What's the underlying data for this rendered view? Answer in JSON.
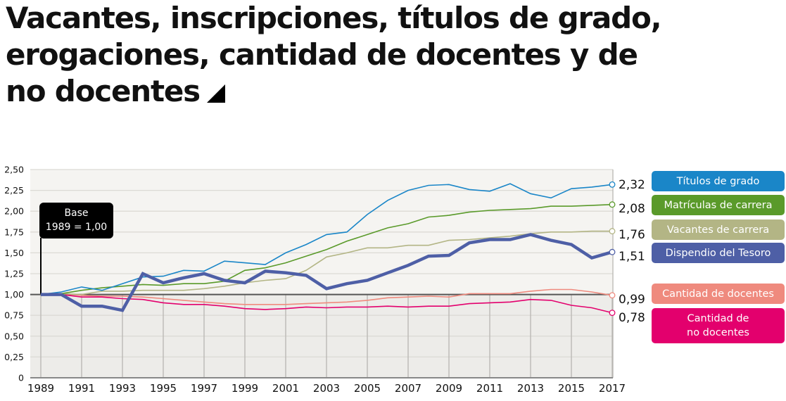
{
  "title": "Vacantes, inscripciones, títulos de grado, erogaciones, cantidad de docentes y de no docentes",
  "title_lines": [
    "Vacantes, inscripciones, títulos de grado,",
    "erogaciones, cantidad de docentes y de",
    "no docentes"
  ],
  "title_icon": "triangle-corner-icon",
  "annotation": {
    "line1": "Base",
    "line2": "1989 = 1,00"
  },
  "chart_data": {
    "type": "line",
    "title": "Vacantes, inscripciones, títulos de grado, erogaciones, cantidad de docentes y de no docentes",
    "xlabel": "",
    "ylabel": "",
    "ylim": [
      0,
      2.5
    ],
    "xlim": [
      1989,
      2017
    ],
    "grid": true,
    "legend_position": "right",
    "baseline": 1.0,
    "y_ticks": [
      "0",
      "0,25",
      "0,50",
      "0,75",
      "1,00",
      "1,25",
      "1,50",
      "1,75",
      "2,00",
      "2,25",
      "2,50"
    ],
    "y_tick_values": [
      0,
      0.25,
      0.5,
      0.75,
      1.0,
      1.25,
      1.5,
      1.75,
      2.0,
      2.25,
      2.5
    ],
    "x_ticks": [
      "1989",
      "1991",
      "1993",
      "1995",
      "1997",
      "1999",
      "2001",
      "2003",
      "2005",
      "2007",
      "2009",
      "2011",
      "2013",
      "2015",
      "2017"
    ],
    "x": [
      1989,
      1990,
      1991,
      1992,
      1993,
      1994,
      1995,
      1996,
      1997,
      1998,
      1999,
      2000,
      2001,
      2002,
      2003,
      2004,
      2005,
      2006,
      2007,
      2008,
      2009,
      2010,
      2011,
      2012,
      2013,
      2014,
      2015,
      2016,
      2017
    ],
    "series": [
      {
        "name": "Títulos de grado",
        "color": "#1a86c8",
        "width": 1.6,
        "end_label": "2,32",
        "values": [
          1.0,
          1.03,
          1.09,
          1.05,
          1.13,
          1.21,
          1.22,
          1.29,
          1.28,
          1.4,
          1.38,
          1.36,
          1.5,
          1.6,
          1.72,
          1.75,
          1.96,
          2.13,
          2.25,
          2.31,
          2.32,
          2.26,
          2.24,
          2.33,
          2.21,
          2.16,
          2.27,
          2.29,
          2.32
        ]
      },
      {
        "name": "Matrículas de carrera",
        "color": "#5a9a2a",
        "width": 1.6,
        "end_label": "2,08",
        "values": [
          1.0,
          1.01,
          1.05,
          1.08,
          1.1,
          1.12,
          1.11,
          1.13,
          1.13,
          1.16,
          1.29,
          1.32,
          1.38,
          1.46,
          1.54,
          1.64,
          1.72,
          1.8,
          1.85,
          1.93,
          1.95,
          1.99,
          2.01,
          2.02,
          2.03,
          2.06,
          2.06,
          2.07,
          2.08
        ]
      },
      {
        "name": "Vacantes de carrera",
        "color": "#b3b585",
        "width": 1.6,
        "end_label": "1,76",
        "values": [
          1.0,
          1.01,
          1.0,
          1.04,
          1.04,
          1.05,
          1.05,
          1.05,
          1.07,
          1.1,
          1.14,
          1.17,
          1.19,
          1.29,
          1.45,
          1.5,
          1.56,
          1.56,
          1.59,
          1.59,
          1.65,
          1.66,
          1.68,
          1.7,
          1.73,
          1.75,
          1.75,
          1.76,
          1.76
        ]
      },
      {
        "name": "Dispendio del Tesoro",
        "color": "#4e5fa6",
        "width": 4.5,
        "end_label": "1,51",
        "values": [
          1.0,
          1.0,
          0.86,
          0.86,
          0.81,
          1.25,
          1.14,
          1.2,
          1.25,
          1.17,
          1.14,
          1.28,
          1.26,
          1.23,
          1.07,
          1.13,
          1.17,
          1.26,
          1.35,
          1.46,
          1.47,
          1.62,
          1.66,
          1.66,
          1.72,
          1.65,
          1.6,
          1.44,
          1.51
        ]
      },
      {
        "name": "Cantidad de docentes",
        "color": "#ef8a7e",
        "width": 1.6,
        "end_label": "0,99",
        "values": [
          1.0,
          1.01,
          0.99,
          0.98,
          0.98,
          0.97,
          0.95,
          0.93,
          0.91,
          0.89,
          0.88,
          0.88,
          0.88,
          0.89,
          0.9,
          0.91,
          0.93,
          0.96,
          0.97,
          0.98,
          0.97,
          1.01,
          1.01,
          1.01,
          1.04,
          1.06,
          1.06,
          1.03,
          0.99
        ]
      },
      {
        "name": "Cantidad de no docentes",
        "color": "#e3006d",
        "width": 1.6,
        "end_label": "0,78",
        "values": [
          1.0,
          1.0,
          0.97,
          0.97,
          0.95,
          0.94,
          0.9,
          0.88,
          0.88,
          0.86,
          0.83,
          0.82,
          0.83,
          0.85,
          0.84,
          0.85,
          0.85,
          0.86,
          0.85,
          0.86,
          0.86,
          0.89,
          0.9,
          0.91,
          0.94,
          0.93,
          0.87,
          0.84,
          0.78
        ]
      }
    ]
  },
  "legend": [
    {
      "label": "Títulos de grado",
      "color": "#1a86c8"
    },
    {
      "label": "Matrículas de carrera",
      "color": "#5a9a2a"
    },
    {
      "label": "Vacantes de carrera",
      "color": "#b3b585"
    },
    {
      "label": "Dispendio del Tesoro",
      "color": "#4e5fa6"
    },
    {
      "label": "Cantidad de docentes",
      "color": "#ef8a7e"
    },
    {
      "label_line1": "Cantidad de",
      "label_line2": "no docentes",
      "color": "#e3006d"
    }
  ],
  "colors": {
    "plot_bg_upper": "#f5f4f1",
    "plot_bg_lower": "#edece9",
    "grid": "#dcdad5",
    "vgrid": "#b8b6b2",
    "baseline": "#555555"
  }
}
